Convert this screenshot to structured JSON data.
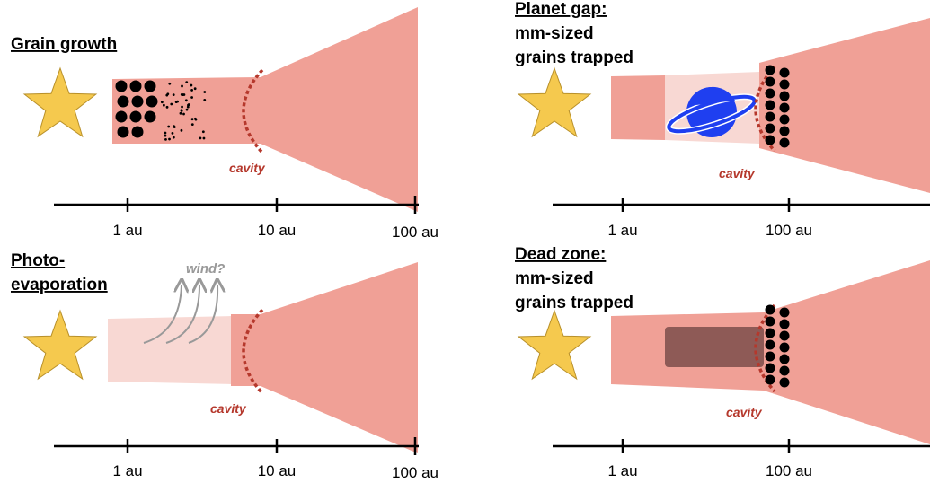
{
  "panels": [
    {
      "title": [
        "Grain growth"
      ],
      "cavity": "cavity",
      "axis": [
        "1 au",
        "10 au",
        "100 au"
      ]
    },
    {
      "title": [
        "Photo-",
        "evaporation"
      ],
      "annotation": "wind?",
      "cavity": "cavity",
      "axis": [
        "1 au",
        "10 au",
        "100 au"
      ]
    },
    {
      "title": [
        "Planet gap:",
        "mm-sized",
        "grains trapped"
      ],
      "cavity": "cavity",
      "axis": [
        "1 au",
        "100 au"
      ]
    },
    {
      "title": [
        "Dead zone:",
        "mm-sized",
        "grains trapped"
      ],
      "cavity": "cavity",
      "axis": [
        "1 au",
        "100 au"
      ]
    }
  ]
}
